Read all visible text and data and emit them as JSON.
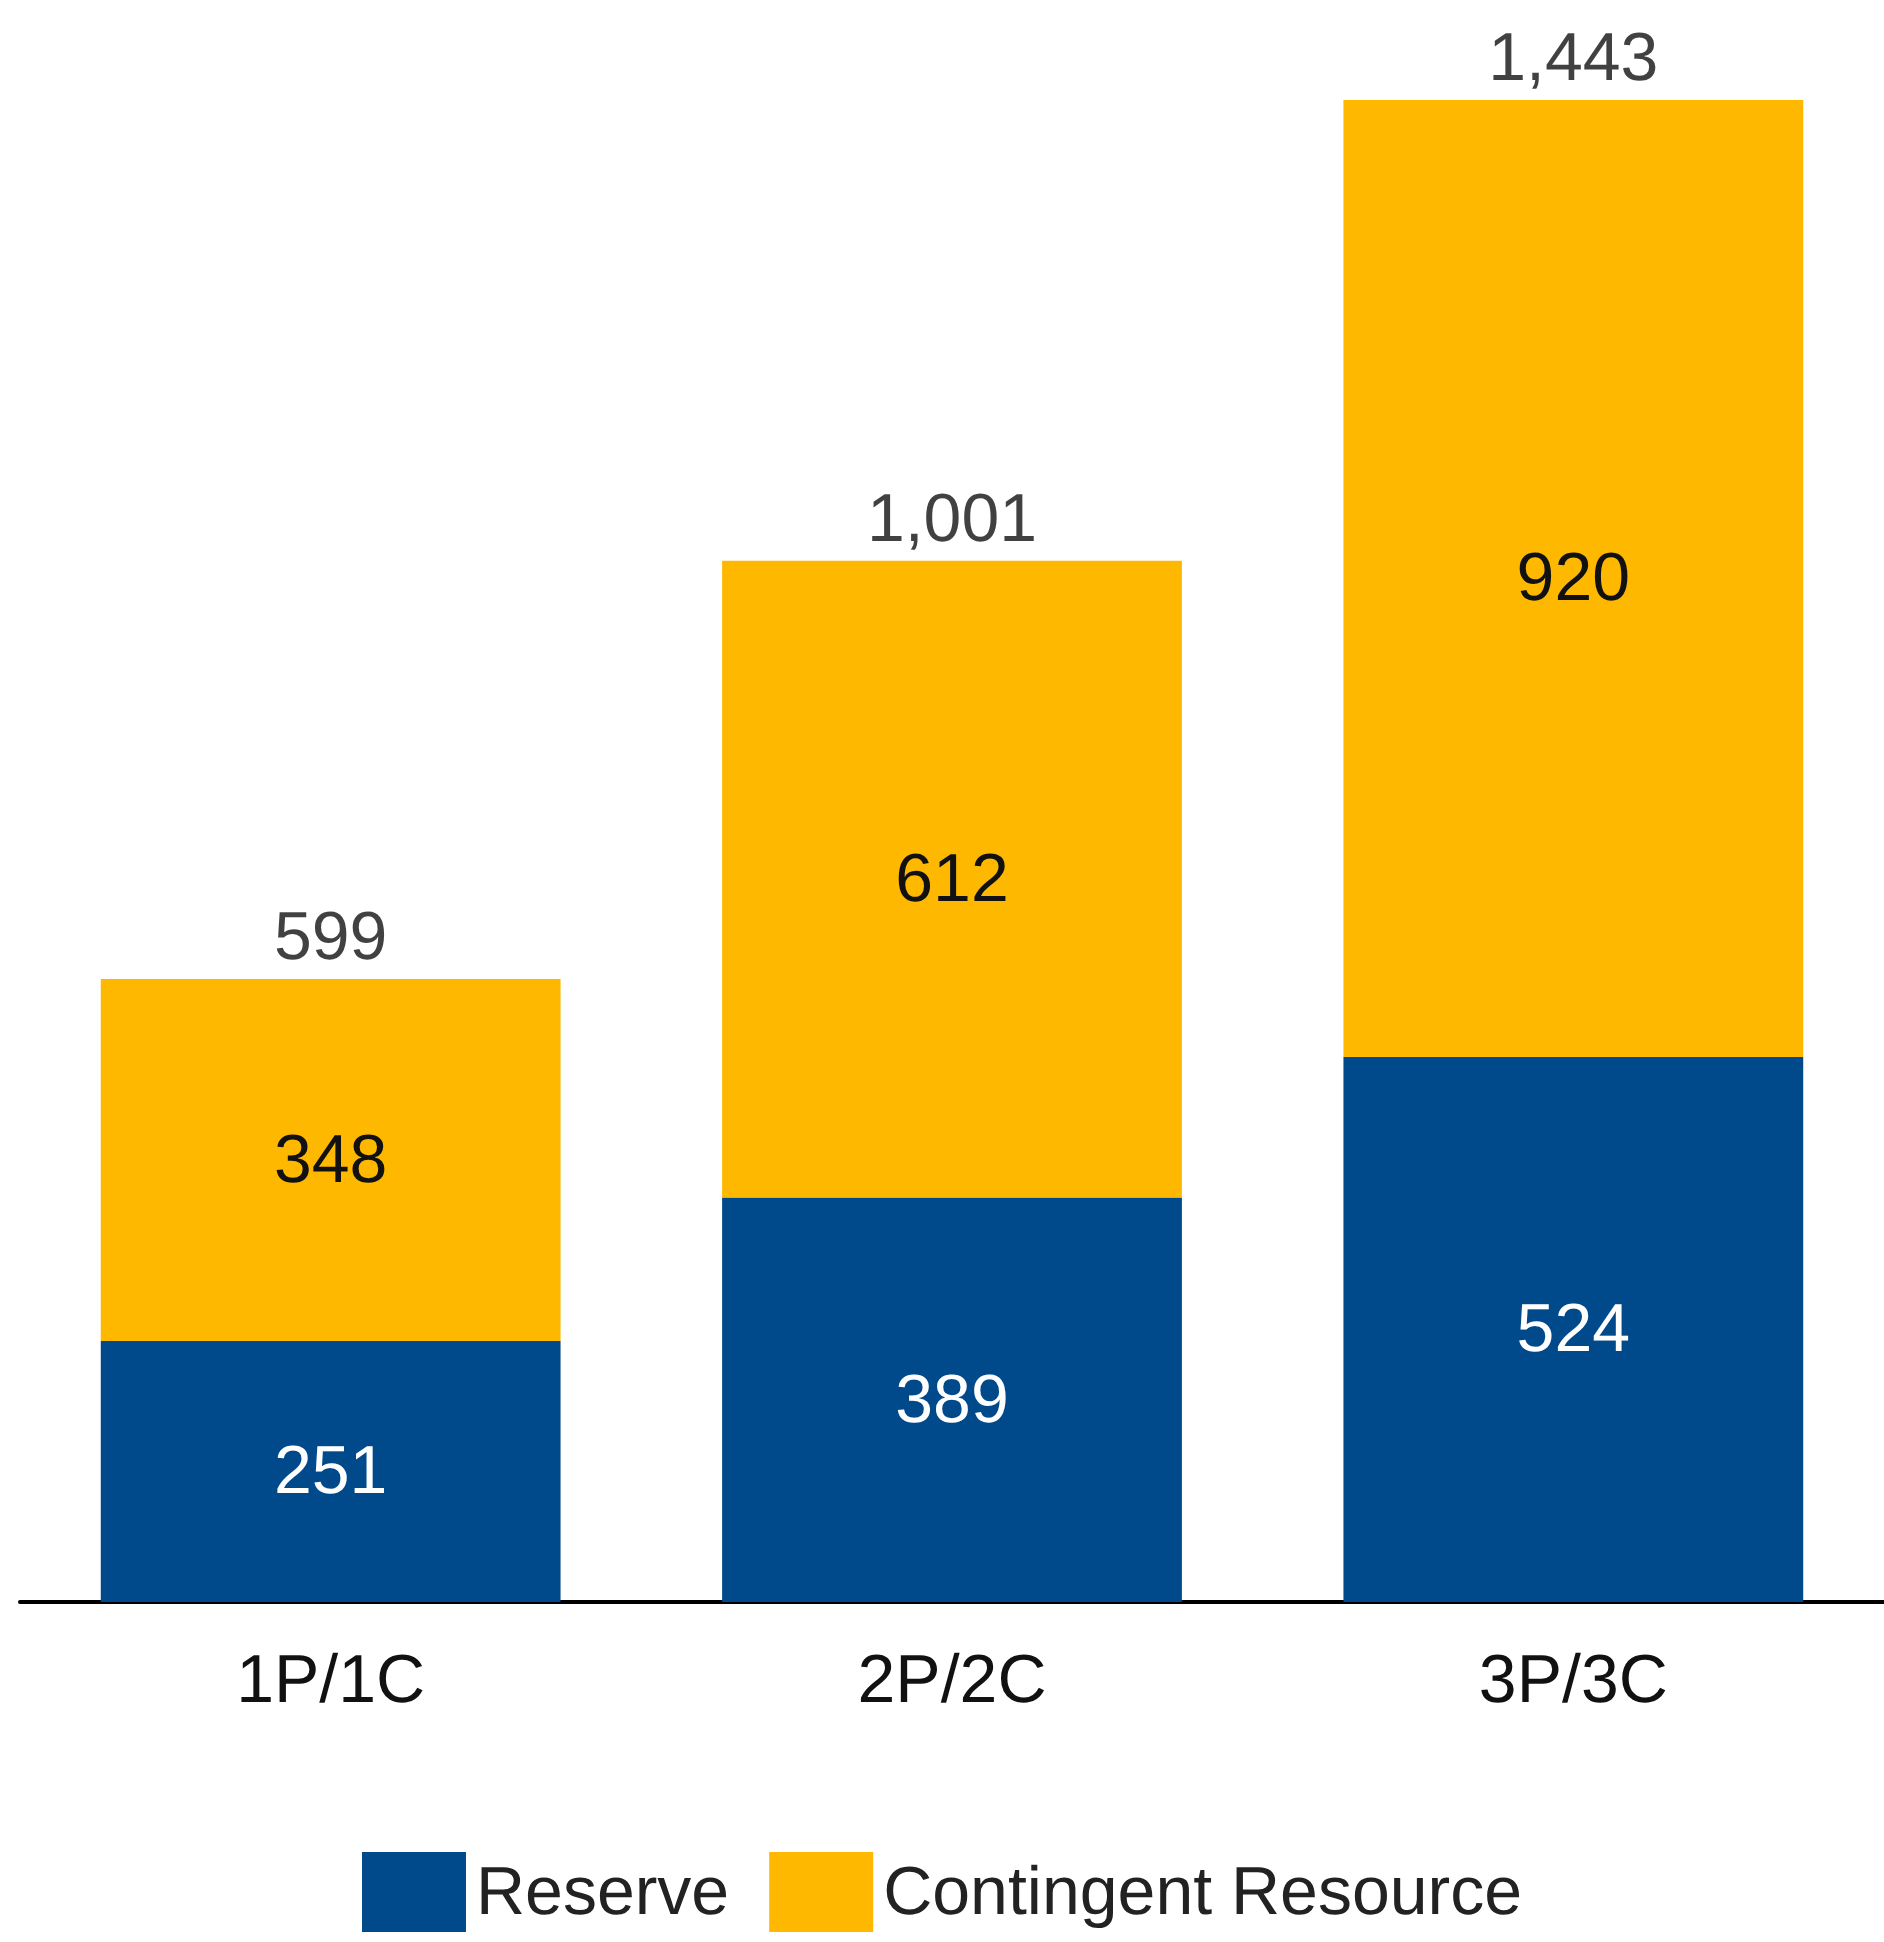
{
  "chart_data": {
    "type": "bar",
    "stacked": true,
    "categories": [
      "1P/1C",
      "2P/2C",
      "3P/3C"
    ],
    "series": [
      {
        "name": "Reserve",
        "color": "#004a8b",
        "values": [
          251,
          389,
          524
        ]
      },
      {
        "name": "Contingent Resource",
        "color": "#ffb800",
        "values": [
          348,
          612,
          920
        ]
      }
    ],
    "data_labels": true,
    "totals": [
      "599",
      "1,001",
      "1,443"
    ],
    "legend": "bottom",
    "grid": false
  }
}
